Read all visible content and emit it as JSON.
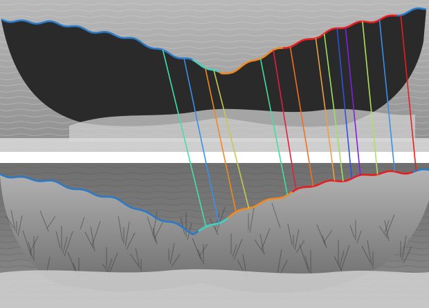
{
  "scene": {
    "description_tag": "whale-fluke-matching-comparison",
    "panels": [
      {
        "id": "top",
        "tone": "dark-fluke",
        "water": "#9a9a9a",
        "fluke_fill": "#2b2b2b"
      },
      {
        "id": "bottom",
        "tone": "light-fluke",
        "water": "#7c7c7c",
        "fluke_fill": "#9c9c9c"
      }
    ],
    "outline_colors": {
      "left_trailing_edge": "#2a7ac8",
      "center_notch": "#3fd3c0",
      "middle_segment": "#f08a20",
      "right_trailing_edge": "#e81d1d"
    },
    "match_colors": [
      "#40e0b0",
      "#3a8fe8",
      "#f08a20",
      "#c8c850",
      "#40e0a0",
      "#e02040",
      "#f07020",
      "#f0a040",
      "#a0e060",
      "#3050e0",
      "#8020e0",
      "#b0e060",
      "#3a8fe8",
      "#e81d1d"
    ],
    "correspondences": [
      {
        "top_edge": 0.38,
        "bottom_edge": 0.48
      },
      {
        "top_edge": 0.43,
        "bottom_edge": 0.51
      },
      {
        "top_edge": 0.48,
        "bottom_edge": 0.55
      },
      {
        "top_edge": 0.5,
        "bottom_edge": 0.58
      },
      {
        "top_edge": 0.61,
        "bottom_edge": 0.67
      },
      {
        "top_edge": 0.64,
        "bottom_edge": 0.69
      },
      {
        "top_edge": 0.68,
        "bottom_edge": 0.73
      },
      {
        "top_edge": 0.74,
        "bottom_edge": 0.78
      },
      {
        "top_edge": 0.76,
        "bottom_edge": 0.8
      },
      {
        "top_edge": 0.79,
        "bottom_edge": 0.82
      },
      {
        "top_edge": 0.81,
        "bottom_edge": 0.84
      },
      {
        "top_edge": 0.85,
        "bottom_edge": 0.88
      },
      {
        "top_edge": 0.89,
        "bottom_edge": 0.92
      },
      {
        "top_edge": 0.94,
        "bottom_edge": 0.97
      }
    ]
  }
}
